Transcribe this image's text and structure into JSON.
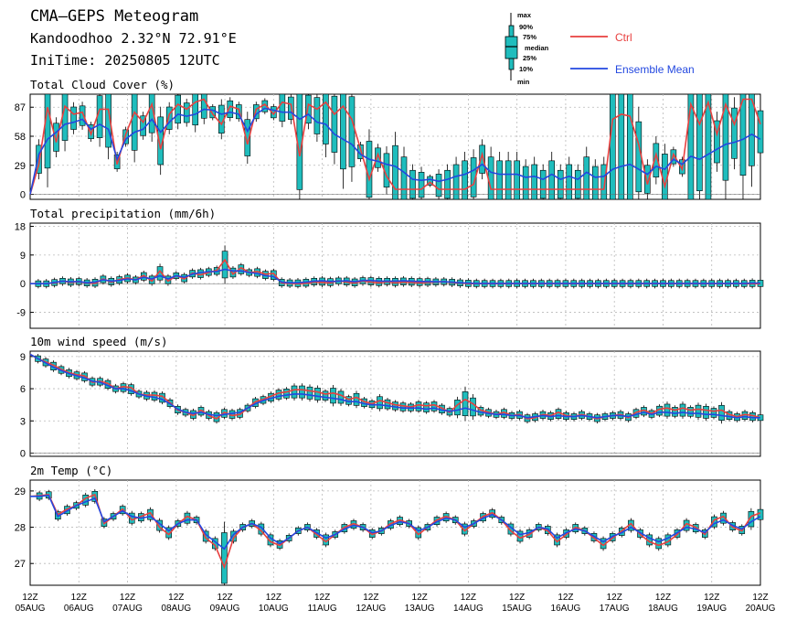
{
  "header": {
    "title": "CMA–GEPS Meteogram",
    "location": "Kandoodhoo 2.32°N 72.91°E",
    "init_time": "IniTime: 20250805 12UTC"
  },
  "legend": {
    "box_labels": [
      "max",
      "90%",
      "75%",
      "median",
      "25%",
      "10%",
      "min"
    ],
    "ctrl_label": "Ctrl",
    "mean_label": "Ensemble Mean"
  },
  "colors": {
    "ctrl": "#e8403f",
    "mean": "#2348e0",
    "box": "#1fbdbd",
    "grid": "#b9b9b9"
  },
  "x_axis": {
    "n_steps": 60,
    "step_hours": 6,
    "labels": [
      {
        "top": "12Z",
        "bottom": "05AUG"
      },
      {
        "top": "12Z",
        "bottom": "06AUG"
      },
      {
        "top": "12Z",
        "bottom": "07AUG"
      },
      {
        "top": "12Z",
        "bottom": "08AUG"
      },
      {
        "top": "12Z",
        "bottom": "09AUG"
      },
      {
        "top": "12Z",
        "bottom": "10AUG"
      },
      {
        "top": "12Z",
        "bottom": "11AUG"
      },
      {
        "top": "12Z",
        "bottom": "12AUG"
      },
      {
        "top": "12Z",
        "bottom": "13AUG"
      },
      {
        "top": "12Z",
        "bottom": "14AUG"
      },
      {
        "top": "12Z",
        "bottom": "15AUG"
      },
      {
        "top": "12Z",
        "bottom": "16AUG"
      },
      {
        "top": "12Z",
        "bottom": "17AUG"
      },
      {
        "top": "12Z",
        "bottom": "18AUG"
      },
      {
        "top": "12Z",
        "bottom": "19AUG"
      },
      {
        "top": "12Z",
        "bottom": "20AUG"
      }
    ]
  },
  "chart_data": [
    {
      "type": "line",
      "title": "Total Cloud Cover (%)",
      "ylim": [
        -5,
        100
      ],
      "yticks": [
        0,
        29,
        58,
        87
      ],
      "ctrl": [
        0,
        30,
        87,
        52,
        88,
        80,
        82,
        60,
        85,
        85,
        30,
        60,
        82,
        72,
        90,
        45,
        80,
        90,
        85,
        92,
        95,
        80,
        70,
        88,
        85,
        50,
        85,
        90,
        80,
        92,
        90,
        38,
        90,
        85,
        92,
        80,
        88,
        75,
        45,
        15,
        40,
        18,
        5,
        5,
        5,
        5,
        12,
        5,
        5,
        5,
        5,
        10,
        40,
        5,
        5,
        5,
        5,
        5,
        5,
        5,
        5,
        5,
        5,
        5,
        5,
        5,
        5,
        75,
        80,
        78,
        50,
        10,
        40,
        8,
        40,
        25,
        90,
        70,
        92,
        60,
        90,
        70,
        95,
        95,
        70
      ],
      "mean": [
        0,
        40,
        55,
        62,
        70,
        72,
        75,
        65,
        70,
        65,
        35,
        55,
        62,
        65,
        75,
        62,
        72,
        80,
        78,
        80,
        85,
        84,
        80,
        82,
        80,
        63,
        80,
        86,
        84,
        82,
        82,
        75,
        80,
        72,
        70,
        60,
        55,
        50,
        40,
        35,
        33,
        30,
        28,
        22,
        15,
        14,
        15,
        13,
        15,
        18,
        20,
        24,
        30,
        22,
        20,
        20,
        20,
        17,
        18,
        15,
        20,
        15,
        18,
        15,
        22,
        17,
        18,
        25,
        28,
        30,
        25,
        20,
        28,
        25,
        35,
        30,
        38,
        35,
        40,
        45,
        50,
        52,
        55,
        60,
        55
      ]
    },
    {
      "type": "line",
      "title": "Total precipitation (mm/6h)",
      "ylim": [
        -14,
        19
      ],
      "yticks": [
        -9,
        0,
        9,
        18
      ],
      "ctrl": [
        0,
        0,
        0,
        0.3,
        0.8,
        0.4,
        0.6,
        0.2,
        0.1,
        1.5,
        0.5,
        1.3,
        1.8,
        1.2,
        2.6,
        0.8,
        4,
        0.8,
        2.5,
        1.5,
        3.3,
        2.8,
        3.5,
        4.2,
        7.5,
        3,
        5,
        3.5,
        3.8,
        3,
        3.2,
        0.2,
        0.1,
        0,
        0.1,
        0.5,
        0.4,
        0.3,
        0.9,
        0.5,
        0.2,
        0.8,
        0.5,
        0.3,
        0.6,
        0.3,
        0.5,
        0.4,
        0.3,
        0.4,
        0.5,
        0.6,
        0.4,
        0.2,
        0,
        0,
        0,
        0,
        0,
        0,
        0,
        0,
        0,
        0,
        0,
        0,
        0,
        0,
        0,
        0,
        0,
        0,
        0,
        0,
        0,
        0,
        0,
        0,
        0,
        0,
        0,
        0,
        0,
        0,
        0,
        0,
        0,
        0,
        0,
        0,
        0
      ],
      "mean": [
        0,
        0,
        0,
        0.4,
        0.8,
        0.6,
        0.7,
        0.3,
        0.5,
        1.2,
        0.8,
        1,
        1.5,
        1.2,
        2,
        1.5,
        2.5,
        1.5,
        2.5,
        2,
        3,
        3.5,
        3.8,
        3.8,
        4.5,
        4,
        4,
        3.5,
        3.2,
        2.5,
        2.2,
        0.5,
        0.3,
        0.3,
        0.5,
        0.8,
        0.9,
        0.7,
        0.8,
        0.9,
        0.6,
        1,
        1,
        0.8,
        0.8,
        0.8,
        0.9,
        0.8,
        0.7,
        0.7,
        0.6,
        0.6,
        0.5,
        0.3,
        0.2,
        0.1,
        0.1,
        0.1,
        0.1,
        0.1,
        0.1,
        0.1,
        0.1,
        0.1,
        0.1,
        0.1,
        0.1,
        0.1,
        0.1,
        0.1,
        0.1,
        0.1,
        0.1,
        0.1,
        0.1,
        0.1,
        0.1,
        0.1,
        0.1,
        0.1,
        0.1,
        0.1,
        0.1,
        0.1,
        0.1,
        0.1,
        0.1,
        0.1,
        0.1,
        0.2,
        0.2
      ]
    },
    {
      "type": "line",
      "title": "10m wind speed (m/s)",
      "ylim": [
        -0.3,
        9.5
      ],
      "yticks": [
        0,
        3,
        6,
        9
      ],
      "ctrl": [
        9.2,
        8.8,
        8.5,
        8.2,
        7.8,
        7.5,
        7.3,
        7.2,
        6.6,
        6.7,
        6.5,
        6,
        6.2,
        6.1,
        5.5,
        5.4,
        5.4,
        5.3,
        4.7,
        4,
        3.8,
        3.5,
        4,
        3.5,
        3.2,
        3.8,
        3.5,
        3.6,
        4.2,
        4.8,
        5,
        5.3,
        5.6,
        5.7,
        5.9,
        5.9,
        5.8,
        5.7,
        5.5,
        5.6,
        5.4,
        5,
        5.2,
        4.8,
        4.6,
        4.9,
        4.7,
        4.5,
        4.4,
        4.3,
        4.5,
        4.4,
        4.5,
        4.2,
        3.8,
        4.5,
        5,
        4.6,
        4,
        3.8,
        3.6,
        3.8,
        3.5,
        3.6,
        3.2,
        3.3,
        3.6,
        3.5,
        3.8,
        3.5,
        3.4,
        3.6,
        3.4,
        3.2,
        3.4,
        3.5,
        3.6,
        3.3,
        3.8,
        4,
        3.7,
        4.1,
        4.2,
        4,
        4.2,
        4,
        4.1,
        4,
        3.9,
        4,
        3.6,
        3.4,
        3.6,
        3.5,
        3.3
      ],
      "mean": [
        9.2,
        8.8,
        8.4,
        8,
        7.7,
        7.4,
        7.2,
        7,
        6.7,
        6.6,
        6.3,
        6,
        6,
        5.8,
        5.5,
        5.3,
        5.2,
        5,
        4.6,
        4.1,
        3.8,
        3.7,
        3.8,
        3.6,
        3.5,
        3.6,
        3.7,
        3.8,
        4.2,
        4.6,
        4.9,
        5.1,
        5.3,
        5.4,
        5.5,
        5.5,
        5.4,
        5.3,
        5.2,
        5.1,
        5,
        4.8,
        4.8,
        4.6,
        4.5,
        4.5,
        4.4,
        4.3,
        4.2,
        4.2,
        4.2,
        4.1,
        4.2,
        4,
        3.9,
        4,
        4.2,
        4,
        3.8,
        3.7,
        3.6,
        3.6,
        3.5,
        3.5,
        3.3,
        3.4,
        3.5,
        3.4,
        3.5,
        3.4,
        3.4,
        3.5,
        3.4,
        3.3,
        3.4,
        3.5,
        3.5,
        3.4,
        3.6,
        3.8,
        3.6,
        3.8,
        3.8,
        3.7,
        3.8,
        3.7,
        3.7,
        3.6,
        3.6,
        3.5,
        3.4,
        3.3,
        3.4,
        3.3,
        3.3
      ]
    },
    {
      "type": "line",
      "title": "2m Temp (°C)",
      "ylim": [
        26.4,
        29.3
      ],
      "yticks": [
        27,
        28,
        29
      ],
      "ctrl": [
        28.85,
        28.87,
        28.9,
        28.35,
        28.5,
        28.6,
        28.8,
        28.9,
        28.1,
        28.3,
        28.5,
        28.2,
        28.3,
        28.4,
        28.0,
        27.8,
        28.1,
        28.3,
        28.2,
        27.7,
        27.5,
        26.9,
        27.7,
        28.0,
        28.1,
        27.9,
        27.6,
        27.5,
        27.7,
        27.9,
        28.0,
        27.8,
        27.6,
        27.8,
        28.0,
        28.1,
        28.0,
        27.8,
        27.9,
        28.1,
        28.2,
        28.1,
        27.8,
        28.0,
        28.2,
        28.3,
        28.2,
        27.9,
        28.1,
        28.3,
        28.4,
        28.2,
        27.9,
        27.7,
        27.8,
        28.0,
        27.9,
        27.6,
        27.8,
        28.0,
        27.9,
        27.7,
        27.5,
        27.7,
        27.9,
        28.1,
        27.8,
        27.6,
        27.5,
        27.6,
        27.8,
        28.1,
        28.0,
        27.8,
        28.2,
        28.3,
        28.0,
        27.9,
        28.3,
        28.4
      ],
      "mean": [
        28.85,
        28.85,
        28.88,
        28.3,
        28.45,
        28.6,
        28.7,
        28.8,
        28.15,
        28.3,
        28.45,
        28.3,
        28.25,
        28.3,
        28.1,
        27.9,
        28.1,
        28.2,
        28.2,
        27.8,
        27.6,
        27.4,
        27.8,
        28.0,
        28.1,
        28.0,
        27.7,
        27.55,
        27.7,
        27.9,
        28.0,
        27.85,
        27.7,
        27.8,
        27.95,
        28.05,
        28.0,
        27.85,
        27.9,
        28.05,
        28.15,
        28.1,
        27.9,
        28.0,
        28.15,
        28.25,
        28.2,
        28.0,
        28.1,
        28.25,
        28.35,
        28.2,
        28.0,
        27.8,
        27.85,
        28.0,
        27.95,
        27.7,
        27.85,
        27.95,
        27.9,
        27.75,
        27.6,
        27.75,
        27.85,
        28.0,
        27.85,
        27.7,
        27.6,
        27.7,
        27.85,
        28.0,
        27.95,
        27.85,
        28.1,
        28.2,
        28.05,
        27.95,
        28.15,
        28.3
      ]
    }
  ]
}
